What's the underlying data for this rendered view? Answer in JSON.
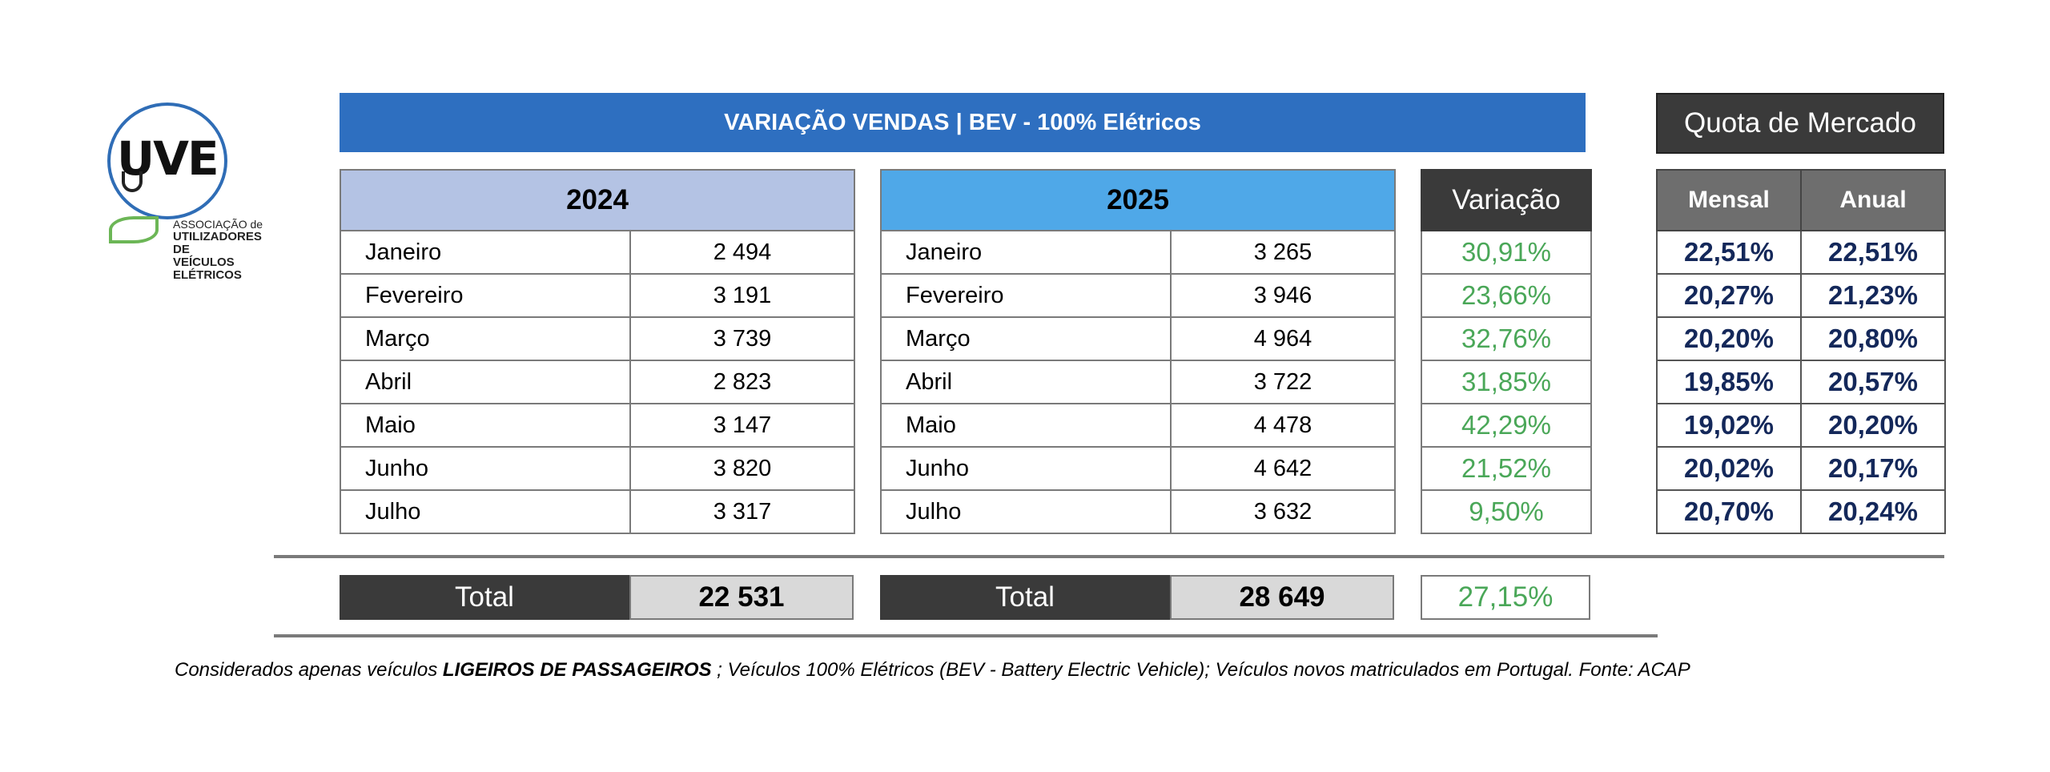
{
  "logo": {
    "brand": "UVE",
    "line1": "ASSOCIAÇÃO de",
    "line2": "UTILIZADORES DE",
    "line3": "VEÍCULOS ELÉTRICOS"
  },
  "title": "VARIAÇÃO VENDAS | BEV - 100% Elétricos",
  "quota_title": "Quota de Mercado",
  "chart_data": {
    "type": "table",
    "title": "VARIAÇÃO VENDAS | BEV - 100% Elétricos",
    "year_a": "2024",
    "year_b": "2025",
    "variation_header": "Variação",
    "months": [
      "Janeiro",
      "Fevereiro",
      "Março",
      "Abril",
      "Maio",
      "Junho",
      "Julho"
    ],
    "sales_2024": [
      "2 494",
      "3 191",
      "3 739",
      "2 823",
      "3 147",
      "3 820",
      "3 317"
    ],
    "sales_2025": [
      "3 265",
      "3 946",
      "4 964",
      "3 722",
      "4 478",
      "4 642",
      "3 632"
    ],
    "variation": [
      "30,91%",
      "23,66%",
      "32,76%",
      "31,85%",
      "42,29%",
      "21,52%",
      "9,50%"
    ],
    "quota_headers": [
      "Mensal",
      "Anual"
    ],
    "quota_mensal": [
      "22,51%",
      "20,27%",
      "20,20%",
      "19,85%",
      "19,02%",
      "20,02%",
      "20,70%"
    ],
    "quota_anual": [
      "22,51%",
      "21,23%",
      "20,80%",
      "20,57%",
      "20,20%",
      "20,17%",
      "20,24%"
    ],
    "total_label": "Total",
    "total_2024": "22 531",
    "total_2025": "28 649",
    "total_variation": "27,15%"
  },
  "footnote": {
    "part1": "Considerados apenas veículos ",
    "bold": "LIGEIROS DE PASSAGEIROS",
    "part2": " ; Veículos 100% Elétricos (BEV - Battery Electric Vehicle); Veículos novos matriculados em Portugal. Fonte: ACAP"
  }
}
